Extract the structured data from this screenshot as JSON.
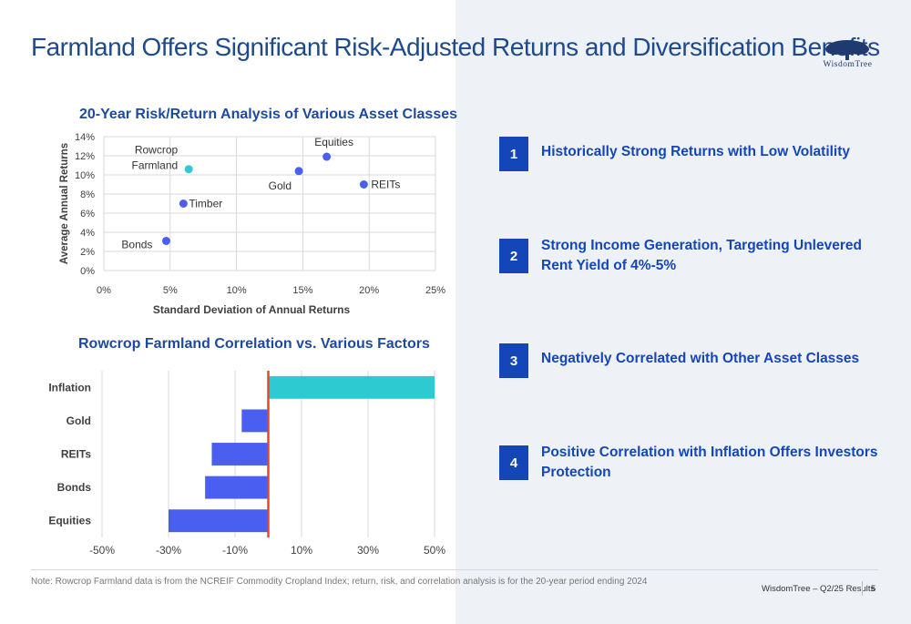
{
  "header": {
    "title": "Farmland Offers Significant Risk-Adjusted Returns and Diversification Benefits"
  },
  "logo": {
    "text": "WisdomTree",
    "icon": "tree-icon"
  },
  "chart_data": [
    {
      "type": "scatter",
      "title": "20-Year Risk/Return Analysis of Various Asset Classes",
      "xlabel": "Standard Deviation of Annual Returns",
      "ylabel": "Average Annual Returns",
      "xlim": [
        0,
        25
      ],
      "ylim": [
        0,
        14
      ],
      "xticks": [
        "0%",
        "5%",
        "10%",
        "15%",
        "20%",
        "25%"
      ],
      "yticks": [
        "0%",
        "2%",
        "4%",
        "6%",
        "8%",
        "10%",
        "12%",
        "14%"
      ],
      "grid": true,
      "points": [
        {
          "label": "Rowcrop Farmland",
          "x": 6.4,
          "y": 10.6,
          "color": "#2ecad2"
        },
        {
          "label": "Equities",
          "x": 16.8,
          "y": 11.9,
          "color": "#4a5ff0"
        },
        {
          "label": "Gold",
          "x": 14.7,
          "y": 10.4,
          "color": "#4a5ff0"
        },
        {
          "label": "REITs",
          "x": 19.6,
          "y": 9.0,
          "color": "#4a5ff0"
        },
        {
          "label": "Timber",
          "x": 6.0,
          "y": 7.0,
          "color": "#4a5ff0"
        },
        {
          "label": "Bonds",
          "x": 4.7,
          "y": 3.1,
          "color": "#4a5ff0"
        }
      ]
    },
    {
      "type": "bar",
      "orientation": "horizontal",
      "title": "Rowcrop Farmland Correlation vs. Various Factors",
      "categories": [
        "Inflation",
        "Gold",
        "REITs",
        "Bonds",
        "Equities"
      ],
      "values": [
        50,
        -8,
        -17,
        -19,
        -30
      ],
      "colors": [
        "#2ecad2",
        "#4a5ff0",
        "#4a5ff0",
        "#4a5ff0",
        "#4a5ff0"
      ],
      "xlim": [
        -50,
        50
      ],
      "xticks": [
        "-50%",
        "-30%",
        "-10%",
        "10%",
        "30%",
        "50%"
      ],
      "zero_line_color": "#e8452c",
      "grid": true
    }
  ],
  "points": [
    {
      "num": "1",
      "text": "Historically Strong Returns with Low Volatility"
    },
    {
      "num": "2",
      "text": "Strong Income Generation, Targeting Unlevered Rent Yield of 4%-5%"
    },
    {
      "num": "3",
      "text": "Negatively Correlated with Other Asset Classes"
    },
    {
      "num": "4",
      "text": "Positive Correlation with Inflation Offers Investors Protection"
    }
  ],
  "footer": {
    "note": "Note: Rowcrop Farmland data is from the NCREIF Commodity Cropland Index; return, risk, and correlation analysis is for the 20-year period ending 2024",
    "source": "WisdomTree – Q2/25 Results",
    "page": "5"
  }
}
